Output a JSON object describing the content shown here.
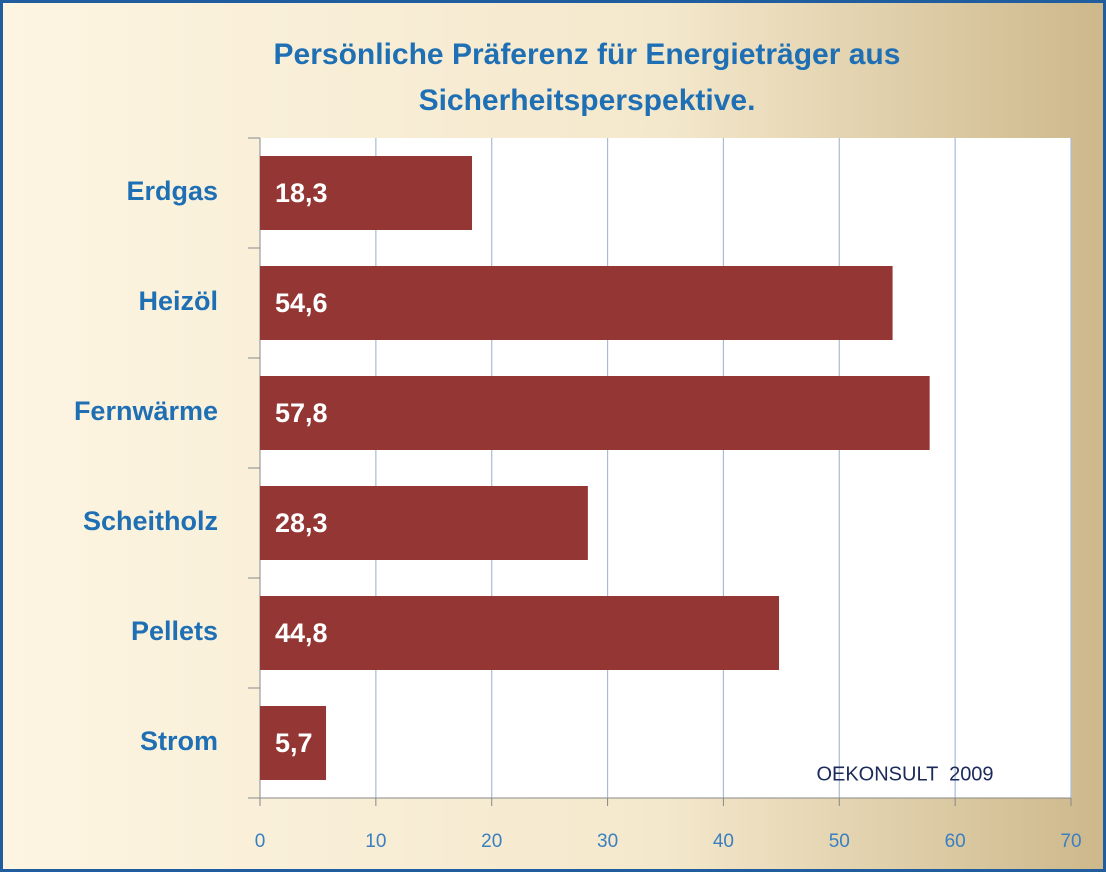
{
  "chart_data": {
    "type": "bar",
    "orientation": "horizontal",
    "title": [
      "Persönliche Präferenz für Energieträger aus",
      "Sicherheitsperspektive."
    ],
    "categories": [
      "Erdgas",
      "Heizöl",
      "Fernwärme",
      "Scheitholz",
      "Pellets",
      "Strom"
    ],
    "values": [
      18.3,
      54.6,
      57.8,
      28.3,
      44.8,
      5.7
    ],
    "value_labels": [
      "18,3",
      "54,6",
      "57,8",
      "28,3",
      "44,8",
      "5,7"
    ],
    "color": "#943634",
    "xlim": [
      0,
      70
    ],
    "xticks": [
      0,
      10,
      20,
      30,
      40,
      50,
      60,
      70
    ],
    "grid": true,
    "annotation": "OEKONSULT  2009"
  }
}
